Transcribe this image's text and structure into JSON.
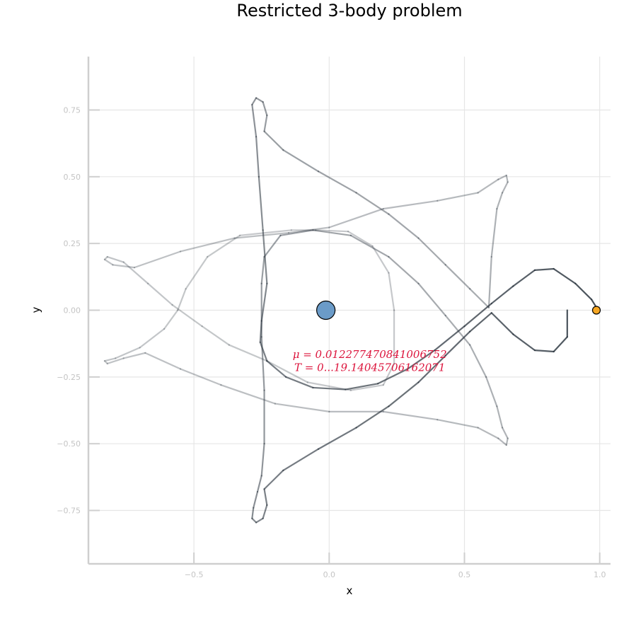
{
  "chart_data": {
    "type": "line",
    "title": "Restricted 3-body problem",
    "xlabel": "x",
    "ylabel": "y",
    "xlim": [
      -0.89,
      1.04
    ],
    "ylim": [
      -0.95,
      0.95
    ],
    "grid": true,
    "legend": "none",
    "x_ticks": [
      {
        "value": -0.5,
        "label": "−0.5"
      },
      {
        "value": 0.0,
        "label": "0.0"
      },
      {
        "value": 0.5,
        "label": "0.5"
      },
      {
        "value": 1.0,
        "label": "1.0"
      }
    ],
    "y_ticks": [
      {
        "value": 0.75,
        "label": "0.75"
      },
      {
        "value": 0.5,
        "label": "0.50"
      },
      {
        "value": 0.25,
        "label": "0.25"
      },
      {
        "value": 0.0,
        "label": "0.00"
      },
      {
        "value": -0.25,
        "label": "−0.25"
      },
      {
        "value": -0.5,
        "label": "−0.50"
      },
      {
        "value": -0.75,
        "label": "−0.75"
      }
    ],
    "annotations": [
      {
        "text": "μ = 0.012277470841006752",
        "x": 0.15,
        "y": -0.165
      },
      {
        "text": "T = 0...19.14045706162071",
        "x": 0.15,
        "y": -0.215
      }
    ],
    "bodies": [
      {
        "x": -0.012277470841006752,
        "y": 0.0,
        "color": "#6b9bc8",
        "size": "large"
      },
      {
        "x": 0.9877225291589932,
        "y": 0.0,
        "color": "#f5a623",
        "size": "small"
      }
    ],
    "trajectory": {
      "color": "#28323c",
      "points": [
        [
          0.994,
          0.0
        ],
        [
          0.97,
          0.04
        ],
        [
          0.91,
          0.1
        ],
        [
          0.83,
          0.155
        ],
        [
          0.76,
          0.15
        ],
        [
          0.68,
          0.09
        ],
        [
          0.6,
          0.025
        ],
        [
          0.5,
          -0.06
        ],
        [
          0.39,
          -0.15
        ],
        [
          0.29,
          -0.22
        ],
        [
          0.18,
          -0.275
        ],
        [
          0.06,
          -0.297
        ],
        [
          -0.06,
          -0.29
        ],
        [
          -0.16,
          -0.25
        ],
        [
          -0.23,
          -0.19
        ],
        [
          -0.255,
          -0.12
        ],
        [
          -0.25,
          -0.04
        ],
        [
          -0.23,
          0.1
        ],
        [
          -0.245,
          0.3
        ],
        [
          -0.26,
          0.5
        ],
        [
          -0.27,
          0.65
        ],
        [
          -0.285,
          0.77
        ],
        [
          -0.27,
          0.795
        ],
        [
          -0.245,
          0.78
        ],
        [
          -0.23,
          0.73
        ],
        [
          -0.24,
          0.67
        ],
        [
          -0.17,
          0.6
        ],
        [
          -0.04,
          0.52
        ],
        [
          0.1,
          0.44
        ],
        [
          0.22,
          0.36
        ],
        [
          0.33,
          0.27
        ],
        [
          0.43,
          0.17
        ],
        [
          0.52,
          0.08
        ],
        [
          0.59,
          0.01
        ],
        [
          0.6,
          0.2
        ],
        [
          0.62,
          0.38
        ],
        [
          0.64,
          0.44
        ],
        [
          0.66,
          0.48
        ],
        [
          0.655,
          0.505
        ],
        [
          0.625,
          0.49
        ],
        [
          0.55,
          0.44
        ],
        [
          0.4,
          0.41
        ],
        [
          0.2,
          0.38
        ],
        [
          0.0,
          0.31
        ],
        [
          -0.15,
          0.29
        ],
        [
          -0.35,
          0.27
        ],
        [
          -0.55,
          0.22
        ],
        [
          -0.72,
          0.16
        ],
        [
          -0.8,
          0.17
        ],
        [
          -0.83,
          0.19
        ],
        [
          -0.82,
          0.2
        ],
        [
          -0.76,
          0.18
        ],
        [
          -0.67,
          0.1
        ],
        [
          -0.58,
          0.02
        ],
        [
          -0.47,
          -0.06
        ],
        [
          -0.37,
          -0.13
        ],
        [
          -0.23,
          -0.19
        ],
        [
          -0.08,
          -0.27
        ],
        [
          0.08,
          -0.3
        ],
        [
          0.2,
          -0.28
        ],
        [
          0.24,
          -0.2
        ],
        [
          0.24,
          0.0
        ],
        [
          0.22,
          0.14
        ],
        [
          0.16,
          0.24
        ],
        [
          0.07,
          0.295
        ],
        [
          -0.05,
          0.3
        ],
        [
          -0.14,
          0.3
        ],
        [
          -0.33,
          0.28
        ],
        [
          -0.45,
          0.2
        ],
        [
          -0.53,
          0.08
        ],
        [
          -0.56,
          0.0
        ],
        [
          -0.61,
          -0.07
        ],
        [
          -0.7,
          -0.14
        ],
        [
          -0.79,
          -0.18
        ],
        [
          -0.83,
          -0.19
        ],
        [
          -0.82,
          -0.2
        ],
        [
          -0.76,
          -0.18
        ],
        [
          -0.68,
          -0.16
        ],
        [
          -0.55,
          -0.22
        ],
        [
          -0.4,
          -0.28
        ],
        [
          -0.2,
          -0.35
        ],
        [
          0.0,
          -0.38
        ],
        [
          0.2,
          -0.38
        ],
        [
          0.4,
          -0.41
        ],
        [
          0.55,
          -0.44
        ],
        [
          0.625,
          -0.48
        ],
        [
          0.655,
          -0.505
        ],
        [
          0.66,
          -0.48
        ],
        [
          0.64,
          -0.44
        ],
        [
          0.62,
          -0.36
        ],
        [
          0.58,
          -0.25
        ],
        [
          0.52,
          -0.13
        ],
        [
          0.43,
          -0.02
        ],
        [
          0.33,
          0.1
        ],
        [
          0.22,
          0.2
        ],
        [
          0.08,
          0.28
        ],
        [
          -0.06,
          0.3
        ],
        [
          -0.18,
          0.28
        ],
        [
          -0.24,
          0.2
        ],
        [
          -0.25,
          0.1
        ],
        [
          -0.25,
          -0.1
        ],
        [
          -0.24,
          -0.3
        ],
        [
          -0.24,
          -0.5
        ],
        [
          -0.25,
          -0.62
        ],
        [
          -0.265,
          -0.68
        ],
        [
          -0.28,
          -0.74
        ],
        [
          -0.285,
          -0.78
        ],
        [
          -0.27,
          -0.795
        ],
        [
          -0.245,
          -0.78
        ],
        [
          -0.23,
          -0.73
        ],
        [
          -0.24,
          -0.67
        ],
        [
          -0.17,
          -0.6
        ],
        [
          -0.04,
          -0.52
        ],
        [
          0.1,
          -0.44
        ],
        [
          0.22,
          -0.36
        ],
        [
          0.33,
          -0.27
        ],
        [
          0.43,
          -0.17
        ],
        [
          0.52,
          -0.08
        ],
        [
          0.6,
          -0.01
        ],
        [
          0.68,
          -0.09
        ],
        [
          0.76,
          -0.15
        ],
        [
          0.83,
          -0.155
        ],
        [
          0.88,
          -0.1
        ],
        [
          0.88,
          0.0
        ]
      ]
    }
  }
}
